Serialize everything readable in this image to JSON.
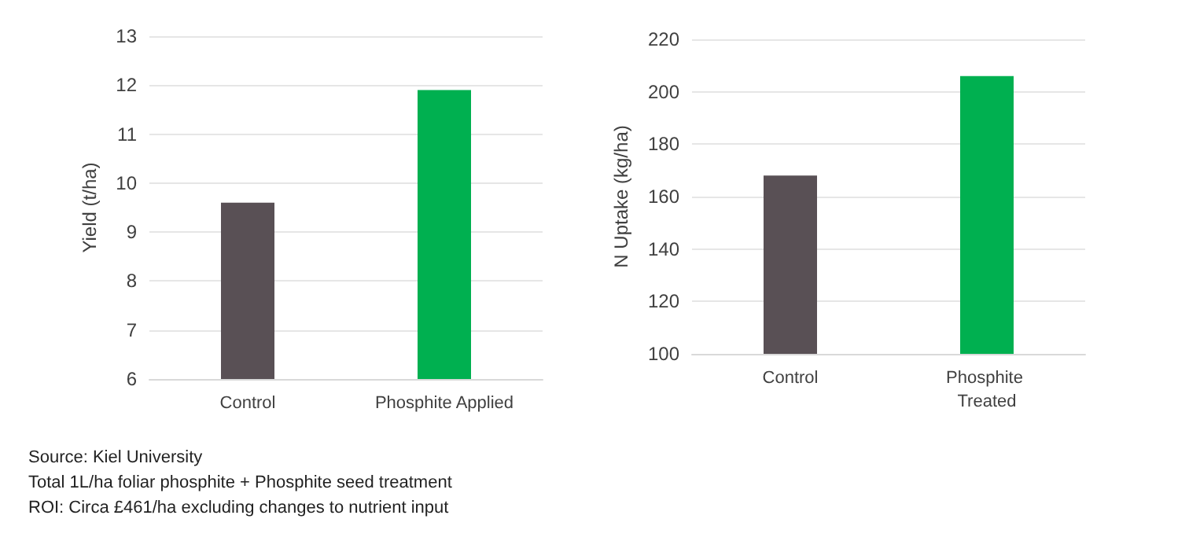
{
  "chart_data": [
    {
      "type": "bar",
      "ylabel": "Yield (t/ha)",
      "categories": [
        "Control",
        "Phosphite Applied"
      ],
      "values": [
        9.6,
        11.9
      ],
      "colors": [
        "#595055",
        "#00b050"
      ],
      "ylim": [
        6,
        13
      ],
      "yticks": [
        6,
        7,
        8,
        9,
        10,
        11,
        12,
        13
      ],
      "grid": "y",
      "annotations": [
        "Source: Kiel University",
        "Total 1L/ha foliar phosphite + Phosphite seed treatment",
        "ROI: Circa £461/ha excluding changes to nutrient input"
      ]
    },
    {
      "type": "bar",
      "ylabel": "N Uptake (kg/ha)",
      "categories": [
        "Control",
        "Phosphite Treated"
      ],
      "values": [
        168,
        206
      ],
      "colors": [
        "#595055",
        "#00b050"
      ],
      "ylim": [
        100,
        220
      ],
      "yticks": [
        100,
        120,
        140,
        160,
        180,
        200,
        220
      ],
      "grid": "y"
    }
  ]
}
